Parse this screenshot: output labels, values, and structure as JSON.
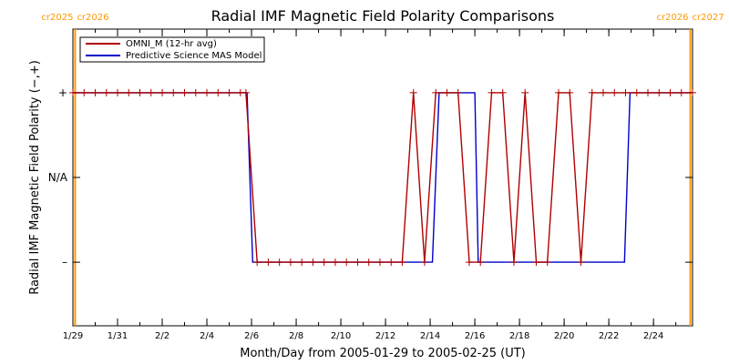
{
  "colors": {
    "omni": "#b00000",
    "mas": "#0000cc",
    "cr": "#ff9900",
    "axis": "#000000"
  },
  "chart_data": {
    "type": "line",
    "title": "Radial IMF Magnetic Field Polarity Comparisons",
    "xlabel": "Month/Day from 2005-01-29 to 2005-02-25 (UT)",
    "ylabel": "Radial IMF Magnetic Field Polarity (−,+)",
    "x_unit": "day_of_window",
    "xlim": [
      0,
      27.75
    ],
    "ylim": [
      -1.75,
      1.75
    ],
    "x_ticks": [
      {
        "x": 0,
        "label": "1/29"
      },
      {
        "x": 2,
        "label": "1/31"
      },
      {
        "x": 4,
        "label": "2/2"
      },
      {
        "x": 6,
        "label": "2/4"
      },
      {
        "x": 8,
        "label": "2/6"
      },
      {
        "x": 10,
        "label": "2/8"
      },
      {
        "x": 12,
        "label": "2/10"
      },
      {
        "x": 14,
        "label": "2/12"
      },
      {
        "x": 16,
        "label": "2/14"
      },
      {
        "x": 18,
        "label": "2/16"
      },
      {
        "x": 20,
        "label": "2/18"
      },
      {
        "x": 22,
        "label": "2/20"
      },
      {
        "x": 24,
        "label": "2/22"
      },
      {
        "x": 26,
        "label": "2/24"
      }
    ],
    "y_ticks": [
      {
        "y": 1,
        "label": "+"
      },
      {
        "y": 0,
        "label": "N/A"
      },
      {
        "y": -1,
        "label": "–"
      }
    ],
    "carrington_markers": [
      {
        "x": 0.1,
        "label_left": "cr2025",
        "label_right": "cr2026"
      },
      {
        "x": 27.65,
        "label_left": "cr2026",
        "label_right": "cr2027"
      }
    ],
    "legend": {
      "placement": "top-left"
    },
    "series": [
      {
        "name": "OMNI_M (12-hr avg)",
        "color": "#b00000",
        "markers": true,
        "x": [
          0,
          0.5,
          1,
          1.5,
          2,
          2.5,
          3,
          3.5,
          4,
          4.5,
          5,
          5.5,
          6,
          6.5,
          7,
          7.5,
          7.75,
          8.25,
          8.75,
          9.25,
          9.75,
          10.25,
          10.75,
          11.25,
          11.75,
          12.25,
          12.75,
          13.25,
          13.75,
          14.25,
          14.75,
          15.25,
          15.75,
          16.25,
          16.75,
          17.25,
          17.75,
          18.25,
          18.75,
          19.25,
          19.75,
          20.25,
          20.75,
          21.25,
          21.75,
          22.25,
          22.75,
          23.25,
          23.75,
          24.25,
          24.75,
          25.25,
          25.75,
          26.25,
          26.75,
          27.25,
          27.75
        ],
        "y": [
          1,
          1,
          1,
          1,
          1,
          1,
          1,
          1,
          1,
          1,
          1,
          1,
          1,
          1,
          1,
          1,
          1,
          -1,
          -1,
          -1,
          -1,
          -1,
          -1,
          -1,
          -1,
          -1,
          -1,
          -1,
          -1,
          -1,
          -1,
          1,
          -1,
          1,
          1,
          1,
          -1,
          -1,
          1,
          1,
          -1,
          1,
          -1,
          -1,
          1,
          1,
          -1,
          1,
          1,
          1,
          1,
          1,
          1,
          1,
          1,
          1,
          1
        ]
      },
      {
        "name": "Predictive Science MAS Model",
        "color": "#0000cc",
        "markers": false,
        "x": [
          0,
          7.8,
          8.05,
          16.1,
          16.4,
          18.0,
          18.15,
          24.7,
          24.95,
          27.75
        ],
        "y": [
          1,
          1,
          -1,
          -1,
          1,
          1,
          -1,
          -1,
          1,
          1
        ]
      }
    ]
  }
}
